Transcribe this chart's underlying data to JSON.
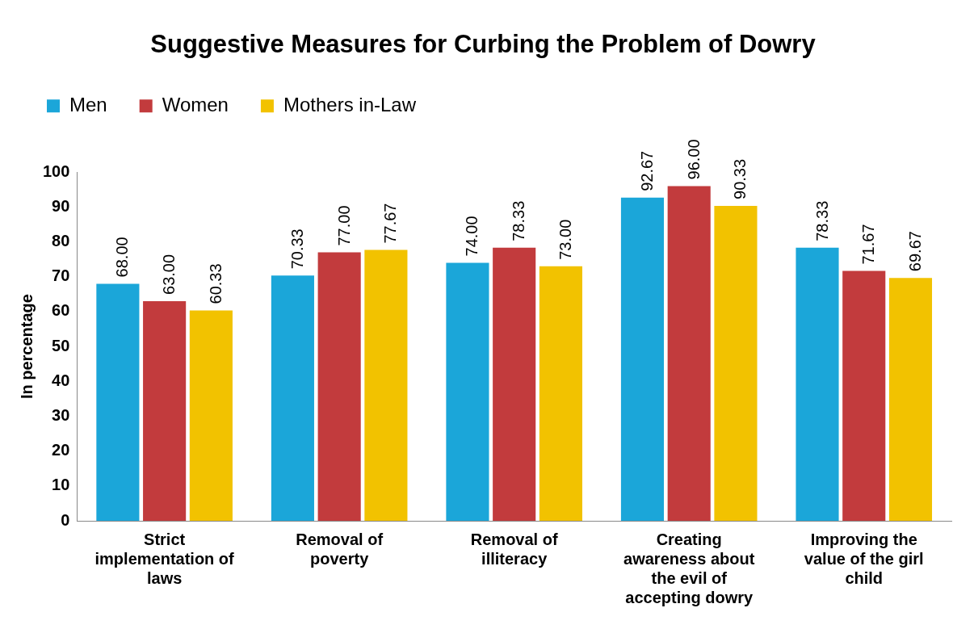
{
  "chart_data": {
    "type": "bar",
    "title": "Suggestive Measures for Curbing the Problem of Dowry",
    "ylabel": "In percentage",
    "categories": [
      "Strict implementation of laws",
      "Removal of poverty",
      "Removal of illiteracy",
      "Creating awareness about the evil of accepting dowry",
      "Improving the value of the girl child"
    ],
    "series": [
      {
        "name": "Men",
        "color": "#1ba6d9",
        "values": [
          68.0,
          70.33,
          74.0,
          92.67,
          78.33
        ],
        "value_labels": [
          "68.00",
          "70.33",
          "74.00",
          "92.67",
          "78.33"
        ]
      },
      {
        "name": "Women",
        "color": "#c23b3d",
        "values": [
          63.0,
          77.0,
          78.33,
          96.0,
          71.67
        ],
        "value_labels": [
          "63.00",
          "77.00",
          "78.33",
          "96.00",
          "71.67"
        ]
      },
      {
        "name": "Mothers in-Law",
        "color": "#f2c200",
        "values": [
          60.33,
          77.67,
          73.0,
          90.33,
          69.67
        ],
        "value_labels": [
          "60.33",
          "77.67",
          "73.00",
          "90.33",
          "69.67"
        ]
      }
    ],
    "ylim": [
      0,
      100
    ],
    "yticks": [
      0,
      10,
      20,
      30,
      40,
      50,
      60,
      70,
      80,
      90,
      100
    ],
    "grid": false,
    "legend": "top"
  }
}
